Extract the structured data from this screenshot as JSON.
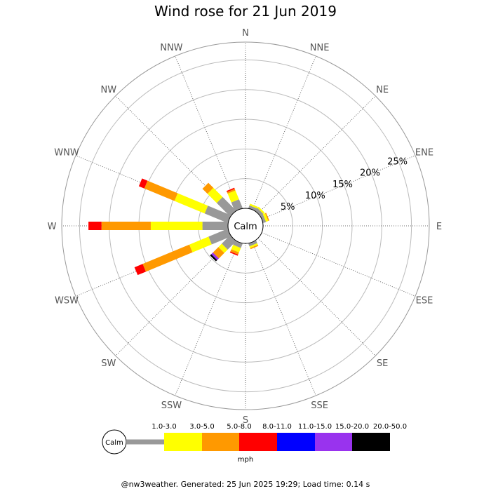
{
  "title": "Wind rose for 21 Jun 2019",
  "footer": "@nw3weather. Generated: 25 Jun 2025 19:29; Load time: 0.14 s",
  "chart_data": {
    "type": "windrose",
    "directions": [
      "N",
      "NNE",
      "NE",
      "ENE",
      "E",
      "ESE",
      "SE",
      "SSE",
      "S",
      "SSW",
      "SW",
      "WSW",
      "W",
      "WNW",
      "NW",
      "NNW"
    ],
    "calm_label": "Calm",
    "radial_labels": [
      "5%",
      "10%",
      "15%",
      "20%",
      "25%"
    ],
    "radial_values": [
      5,
      10,
      15,
      20,
      25
    ],
    "radial_max": 28,
    "speed_unit": "mph",
    "speed_bins": [
      {
        "label": "1.0-3.0",
        "color": "#999999"
      },
      {
        "label": "3.0-5.0",
        "color": "#ffff00"
      },
      {
        "label": "5.0-8.0",
        "color": "#ff9900"
      },
      {
        "label": "8.0-11.0",
        "color": "#ff0000"
      },
      {
        "label": "11.0-15.0",
        "color": "#0000ff"
      },
      {
        "label": "15.0-20.0",
        "color": "#9933ee"
      },
      {
        "label": "20.0-50.0",
        "color": "#000000"
      }
    ],
    "series": [
      {
        "direction": "N",
        "values": [
          0,
          0,
          0,
          0,
          0,
          0,
          0
        ]
      },
      {
        "direction": "NNE",
        "values": [
          0.5,
          0.3,
          0,
          0,
          0,
          0,
          0
        ]
      },
      {
        "direction": "NE",
        "values": [
          0.6,
          0.3,
          0,
          0,
          0,
          0,
          0
        ]
      },
      {
        "direction": "ENE",
        "values": [
          0.5,
          0.4,
          0.2,
          0,
          0,
          0,
          0
        ]
      },
      {
        "direction": "E",
        "values": [
          0,
          0,
          0,
          0,
          0,
          0,
          0
        ]
      },
      {
        "direction": "ESE",
        "values": [
          0,
          0,
          0,
          0,
          0,
          0,
          0
        ]
      },
      {
        "direction": "SE",
        "values": [
          0,
          0,
          0,
          0,
          0,
          0,
          0
        ]
      },
      {
        "direction": "SSE",
        "values": [
          0.5,
          0.3,
          0.2,
          0,
          0,
          0,
          0
        ]
      },
      {
        "direction": "S",
        "values": [
          0,
          0,
          0,
          0,
          0,
          0,
          0
        ]
      },
      {
        "direction": "SSW",
        "values": [
          0.8,
          0.8,
          0.4,
          0.2,
          0,
          0,
          0
        ]
      },
      {
        "direction": "SW",
        "values": [
          2.0,
          0.8,
          1.3,
          0,
          0,
          0.4,
          0.3
        ]
      },
      {
        "direction": "WSW",
        "values": [
          3.5,
          3.5,
          8.5,
          1.5,
          0,
          0,
          0
        ]
      },
      {
        "direction": "W",
        "values": [
          4.3,
          8.7,
          8.3,
          2.2,
          0,
          0,
          0
        ]
      },
      {
        "direction": "WNW",
        "values": [
          4.2,
          5.5,
          5.5,
          1.0,
          0,
          0,
          0
        ]
      },
      {
        "direction": "NW",
        "values": [
          3.2,
          2.2,
          1.2,
          0,
          0,
          0,
          0
        ]
      },
      {
        "direction": "NNW",
        "values": [
          1.6,
          1.6,
          0.3,
          0.2,
          0,
          0,
          0
        ]
      }
    ]
  }
}
